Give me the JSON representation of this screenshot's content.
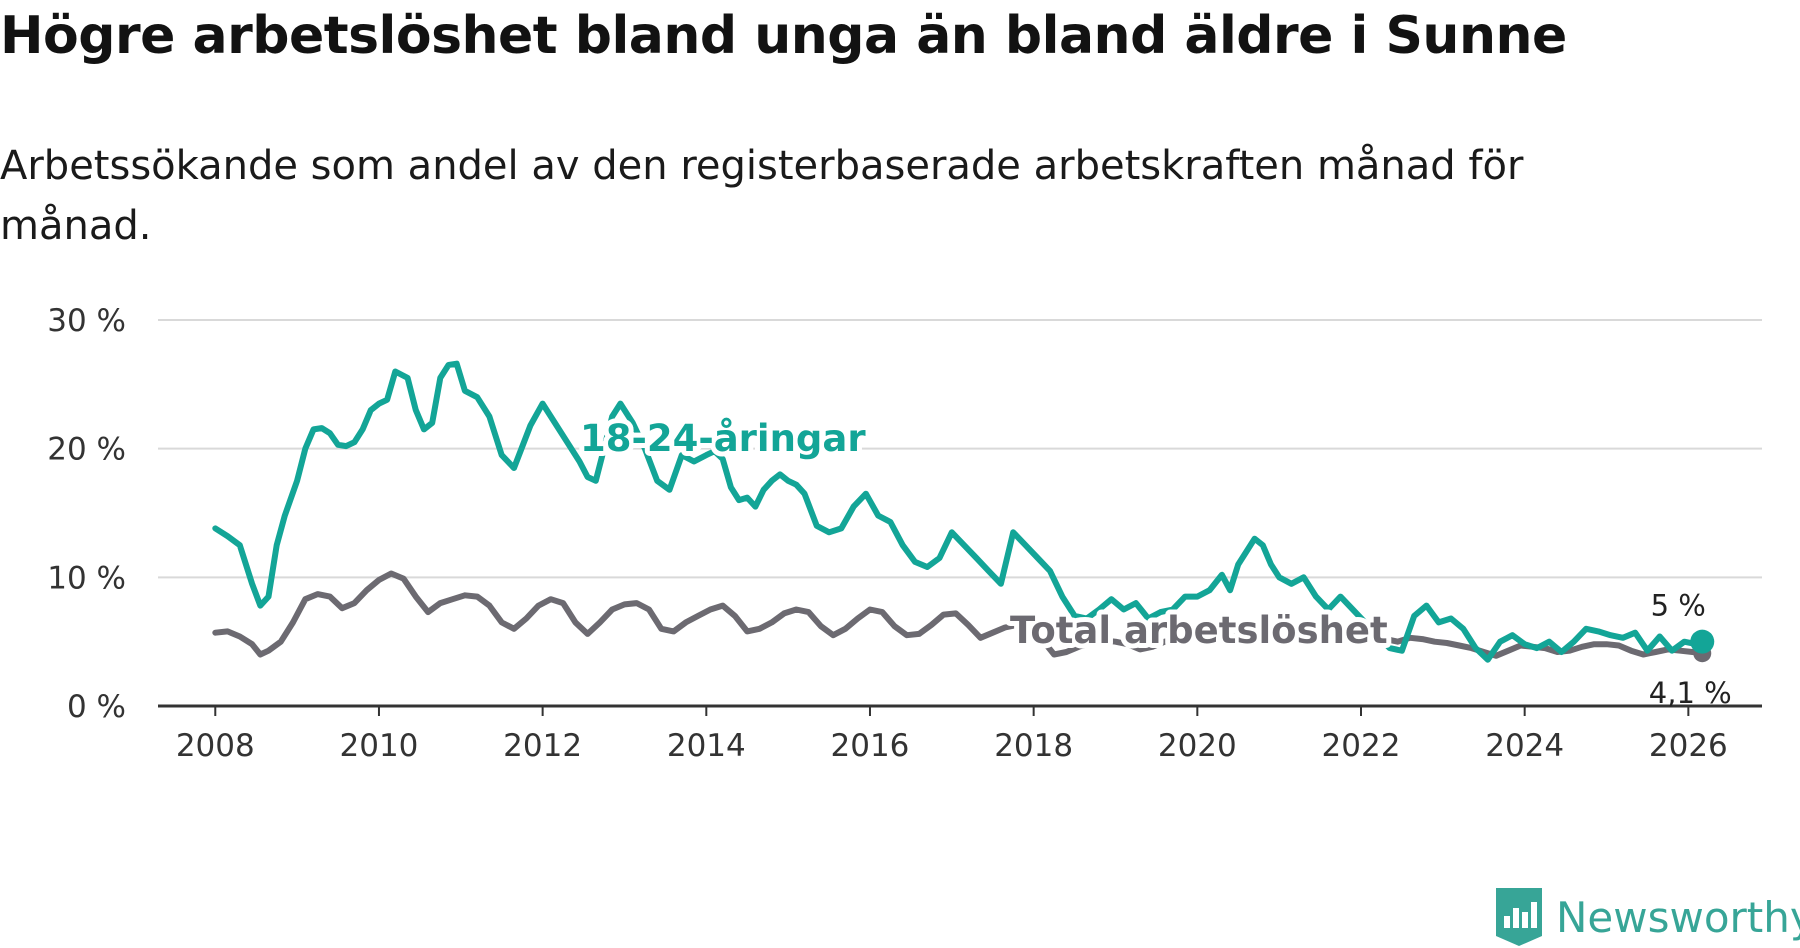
{
  "title": "Högre arbetslöshet bland unga än bland äldre i Sunne",
  "subtitle": "Arbetssökande som andel av den registerbaserade arbetskraften månad för månad.",
  "brand": {
    "name": "Newsworthy",
    "icon": "newsworthy-logo-icon",
    "color": "#37a597"
  },
  "chart_data": {
    "type": "line",
    "title": "Högre arbetslöshet bland unga än bland äldre i Sunne",
    "xlabel": "",
    "ylabel": "",
    "xlim": [
      2007.3,
      2026.9
    ],
    "ylim": [
      0,
      30
    ],
    "grid": true,
    "y_ticks": [
      0,
      10,
      20,
      30
    ],
    "y_tick_labels": [
      "0 %",
      "10 %",
      "20 %",
      "30 %"
    ],
    "x_ticks": [
      2008,
      2010,
      2012,
      2014,
      2016,
      2018,
      2020,
      2022,
      2024,
      2026
    ],
    "x_tick_labels": [
      "2008",
      "2010",
      "2012",
      "2014",
      "2016",
      "2018",
      "2020",
      "2022",
      "2024",
      "2026"
    ],
    "series": [
      {
        "name": "18-24-åringar",
        "label": "18-24-åringar",
        "color": "#13a597",
        "end_label": "5 %",
        "x": [
          2008.0,
          2008.15,
          2008.3,
          2008.45,
          2008.55,
          2008.65,
          2008.75,
          2008.85,
          2009.0,
          2009.1,
          2009.2,
          2009.3,
          2009.4,
          2009.5,
          2009.6,
          2009.7,
          2009.8,
          2009.9,
          2010.0,
          2010.1,
          2010.2,
          2010.35,
          2010.45,
          2010.55,
          2010.65,
          2010.75,
          2010.85,
          2010.95,
          2011.05,
          2011.2,
          2011.35,
          2011.5,
          2011.65,
          2011.85,
          2012.0,
          2012.15,
          2012.3,
          2012.45,
          2012.55,
          2012.65,
          2012.75,
          2012.85,
          2012.95,
          2013.1,
          2013.25,
          2013.4,
          2013.55,
          2013.7,
          2013.85,
          2014.0,
          2014.1,
          2014.2,
          2014.3,
          2014.4,
          2014.5,
          2014.6,
          2014.7,
          2014.8,
          2014.9,
          2015.0,
          2015.1,
          2015.2,
          2015.35,
          2015.5,
          2015.65,
          2015.8,
          2015.95,
          2016.1,
          2016.25,
          2016.4,
          2016.55,
          2016.7,
          2016.85,
          2017.0,
          2017.15,
          2017.3,
          2017.45,
          2017.6,
          2017.75,
          2017.9,
          2018.05,
          2018.2,
          2018.35,
          2018.5,
          2018.65,
          2018.8,
          2018.95,
          2019.1,
          2019.25,
          2019.4,
          2019.55,
          2019.7,
          2019.85,
          2020.0,
          2020.15,
          2020.3,
          2020.4,
          2020.5,
          2020.6,
          2020.7,
          2020.8,
          2020.9,
          2021.0,
          2021.15,
          2021.3,
          2021.45,
          2021.6,
          2021.75,
          2021.9,
          2022.05,
          2022.2,
          2022.35,
          2022.5,
          2022.65,
          2022.8,
          2022.95,
          2023.1,
          2023.25,
          2023.4,
          2023.55,
          2023.7,
          2023.85,
          2024.0,
          2024.15,
          2024.3,
          2024.45,
          2024.6,
          2024.75,
          2024.9,
          2025.05,
          2025.2,
          2025.35,
          2025.5,
          2025.65,
          2025.8,
          2025.95,
          2026.1,
          2026.17
        ],
        "values": [
          13.8,
          13.2,
          12.5,
          9.5,
          7.8,
          8.5,
          12.5,
          14.8,
          17.5,
          20.0,
          21.5,
          21.6,
          21.2,
          20.3,
          20.2,
          20.5,
          21.5,
          23.0,
          23.5,
          23.8,
          26.0,
          25.5,
          23.0,
          21.5,
          22.0,
          25.5,
          26.5,
          26.6,
          24.5,
          24.0,
          22.5,
          19.5,
          18.5,
          21.8,
          23.5,
          22.0,
          20.5,
          19.0,
          17.8,
          17.5,
          20.0,
          22.5,
          23.5,
          22.0,
          20.0,
          17.5,
          16.8,
          19.5,
          19.0,
          19.5,
          19.8,
          19.2,
          17.0,
          16.0,
          16.2,
          15.5,
          16.8,
          17.5,
          18.0,
          17.5,
          17.2,
          16.5,
          14.0,
          13.5,
          13.8,
          15.5,
          16.5,
          14.8,
          14.3,
          12.5,
          11.2,
          10.8,
          11.5,
          13.5,
          12.5,
          11.5,
          10.5,
          9.5,
          13.5,
          12.5,
          11.5,
          10.5,
          8.5,
          7.0,
          6.8,
          7.5,
          8.3,
          7.5,
          8.0,
          6.8,
          7.3,
          7.5,
          8.5,
          8.5,
          9.0,
          10.2,
          9.0,
          11.0,
          12.0,
          13.0,
          12.5,
          11.0,
          10.0,
          9.5,
          10.0,
          8.5,
          7.5,
          8.5,
          7.5,
          6.5,
          5.5,
          4.5,
          4.3,
          7.0,
          7.8,
          6.5,
          6.8,
          6.0,
          4.5,
          3.6,
          5.0,
          5.5,
          4.8,
          4.5,
          5.0,
          4.2,
          5.0,
          6.0,
          5.8,
          5.5,
          5.3,
          5.7,
          4.3,
          5.4,
          4.3,
          5.0,
          4.8,
          5.0
        ]
      },
      {
        "name": "Total arbetslöshet",
        "label": "Total arbetslöshet",
        "color": "#6c6a71",
        "end_label": "4,1 %",
        "x": [
          2008.0,
          2008.15,
          2008.3,
          2008.45,
          2008.55,
          2008.65,
          2008.8,
          2008.95,
          2009.1,
          2009.25,
          2009.4,
          2009.55,
          2009.7,
          2009.85,
          2010.0,
          2010.15,
          2010.3,
          2010.45,
          2010.6,
          2010.75,
          2010.9,
          2011.05,
          2011.2,
          2011.35,
          2011.5,
          2011.65,
          2011.8,
          2011.95,
          2012.1,
          2012.25,
          2012.4,
          2012.55,
          2012.7,
          2012.85,
          2013.0,
          2013.15,
          2013.3,
          2013.45,
          2013.6,
          2013.75,
          2013.9,
          2014.05,
          2014.2,
          2014.35,
          2014.5,
          2014.65,
          2014.8,
          2014.95,
          2015.1,
          2015.25,
          2015.4,
          2015.55,
          2015.7,
          2015.85,
          2016.0,
          2016.15,
          2016.3,
          2016.45,
          2016.6,
          2016.75,
          2016.9,
          2017.05,
          2017.2,
          2017.35,
          2017.5,
          2017.65,
          2017.8,
          2017.95,
          2018.1,
          2018.25,
          2018.4,
          2018.55,
          2018.7,
          2018.85,
          2019.0,
          2019.15,
          2019.3,
          2019.45,
          2019.6,
          2019.75,
          2019.9,
          2020.05,
          2020.2,
          2020.35,
          2020.5,
          2020.65,
          2020.8,
          2020.95,
          2021.1,
          2021.25,
          2021.4,
          2021.55,
          2021.7,
          2021.85,
          2022.0,
          2022.15,
          2022.3,
          2022.45,
          2022.6,
          2022.75,
          2022.9,
          2023.05,
          2023.2,
          2023.35,
          2023.5,
          2023.65,
          2023.8,
          2023.95,
          2024.1,
          2024.25,
          2024.4,
          2024.55,
          2024.7,
          2024.85,
          2025.0,
          2025.15,
          2025.3,
          2025.45,
          2025.6,
          2025.75,
          2025.9,
          2026.05,
          2026.17
        ],
        "values": [
          5.7,
          5.8,
          5.4,
          4.8,
          4.0,
          4.3,
          5.0,
          6.5,
          8.3,
          8.7,
          8.5,
          7.6,
          8.0,
          9.0,
          9.8,
          10.3,
          9.9,
          8.5,
          7.3,
          8.0,
          8.3,
          8.6,
          8.5,
          7.8,
          6.5,
          6.0,
          6.8,
          7.8,
          8.3,
          8.0,
          6.5,
          5.6,
          6.5,
          7.5,
          7.9,
          8.0,
          7.5,
          6.0,
          5.8,
          6.5,
          7.0,
          7.5,
          7.8,
          7.0,
          5.8,
          6.0,
          6.5,
          7.2,
          7.5,
          7.3,
          6.2,
          5.5,
          6.0,
          6.8,
          7.5,
          7.3,
          6.2,
          5.5,
          5.6,
          6.3,
          7.1,
          7.2,
          6.3,
          5.3,
          5.7,
          6.1,
          6.3,
          5.7,
          5.2,
          4.0,
          4.2,
          4.6,
          4.9,
          5.1,
          5.0,
          4.8,
          4.4,
          4.6,
          5.0,
          5.2,
          5.5,
          5.8,
          5.8,
          5.5,
          5.4,
          5.5,
          5.7,
          5.6,
          5.5,
          5.4,
          5.3,
          5.2,
          5.3,
          5.2,
          5.1,
          5.3,
          5.2,
          5.0,
          5.3,
          5.2,
          5.0,
          4.9,
          4.7,
          4.5,
          4.2,
          3.9,
          4.3,
          4.7,
          4.6,
          4.5,
          4.2,
          4.3,
          4.6,
          4.8,
          4.8,
          4.7,
          4.3,
          4.0,
          4.2,
          4.4,
          4.3,
          4.2,
          4.1
        ]
      }
    ]
  }
}
